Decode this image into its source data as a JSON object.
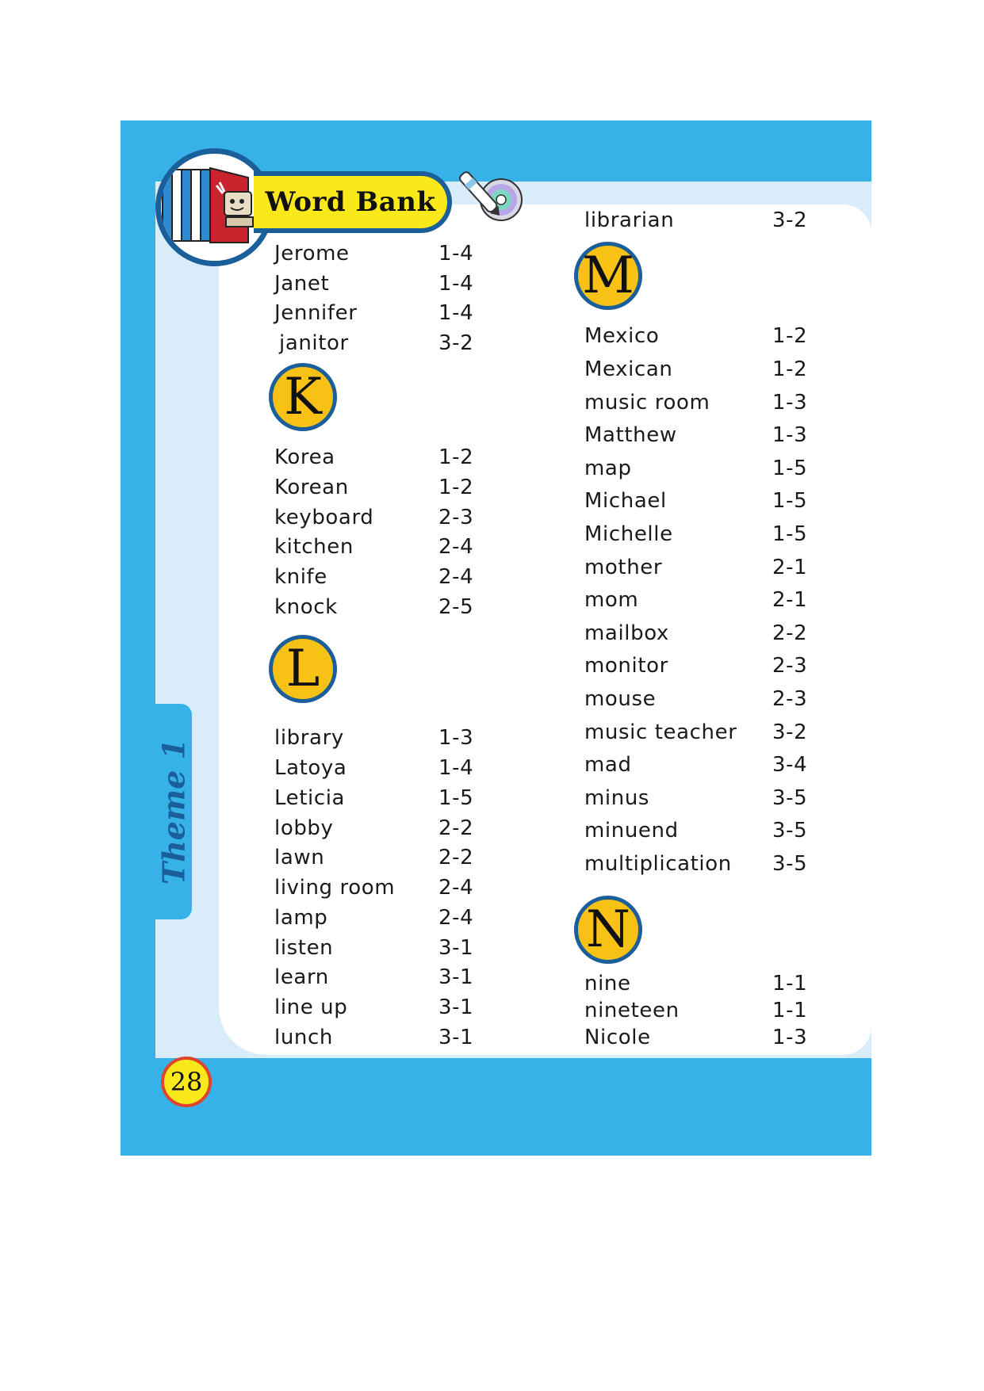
{
  "header": {
    "title": "Word Bank",
    "theme_label": "Theme 1",
    "page_number": "28"
  },
  "colors": {
    "frame": "#36b2e8",
    "light": "#d9ecf9",
    "circle": "#f7c116",
    "border": "#1b5f9a",
    "title_bg": "#f9e81a"
  },
  "left_column": {
    "j_entries": [
      {
        "word": "Jerome",
        "code": "1-4"
      },
      {
        "word": "Janet",
        "code": "1-4"
      },
      {
        "word": "Jennifer",
        "code": "1-4"
      },
      {
        "word": "janitor",
        "code": "3-2"
      }
    ],
    "k_letter": "K",
    "k_entries": [
      {
        "word": "Korea",
        "code": "1-2"
      },
      {
        "word": "Korean",
        "code": "1-2"
      },
      {
        "word": "keyboard",
        "code": "2-3"
      },
      {
        "word": "kitchen",
        "code": "2-4"
      },
      {
        "word": "knife",
        "code": "2-4"
      },
      {
        "word": "knock",
        "code": "2-5"
      }
    ],
    "l_letter": "L",
    "l_entries": [
      {
        "word": "library",
        "code": "1-3"
      },
      {
        "word": "Latoya",
        "code": "1-4"
      },
      {
        "word": "Leticia",
        "code": "1-5"
      },
      {
        "word": "lobby",
        "code": "2-2"
      },
      {
        "word": "lawn",
        "code": "2-2"
      },
      {
        "word": "living room",
        "code": "2-4"
      },
      {
        "word": "lamp",
        "code": "2-4"
      },
      {
        "word": "listen",
        "code": "3-1"
      },
      {
        "word": "learn",
        "code": "3-1"
      },
      {
        "word": "line up",
        "code": "3-1"
      },
      {
        "word": "lunch",
        "code": "3-1"
      }
    ]
  },
  "right_column": {
    "l_entries": [
      {
        "word": "librarian",
        "code": "3-2"
      }
    ],
    "m_letter": "M",
    "m_entries": [
      {
        "word": "Mexico",
        "code": "1-2"
      },
      {
        "word": "Mexican",
        "code": "1-2"
      },
      {
        "word": "music room",
        "code": "1-3"
      },
      {
        "word": "Matthew",
        "code": "1-3"
      },
      {
        "word": "map",
        "code": "1-5"
      },
      {
        "word": "Michael",
        "code": "1-5"
      },
      {
        "word": "Michelle",
        "code": "1-5"
      },
      {
        "word": "mother",
        "code": "2-1"
      },
      {
        "word": "mom",
        "code": "2-1"
      },
      {
        "word": "mailbox",
        "code": "2-2"
      },
      {
        "word": "monitor",
        "code": "2-3"
      },
      {
        "word": "mouse",
        "code": "2-3"
      },
      {
        "word": "music teacher",
        "code": "3-2"
      },
      {
        "word": "mad",
        "code": "3-4"
      },
      {
        "word": "minus",
        "code": "3-5"
      },
      {
        "word": "minuend",
        "code": "3-5"
      },
      {
        "word": "multiplication",
        "code": "3-5"
      }
    ],
    "n_letter": "N",
    "n_entries": [
      {
        "word": "nine",
        "code": "1-1"
      },
      {
        "word": "nineteen",
        "code": "1-1"
      },
      {
        "word": "Nicole",
        "code": "1-3"
      }
    ]
  }
}
